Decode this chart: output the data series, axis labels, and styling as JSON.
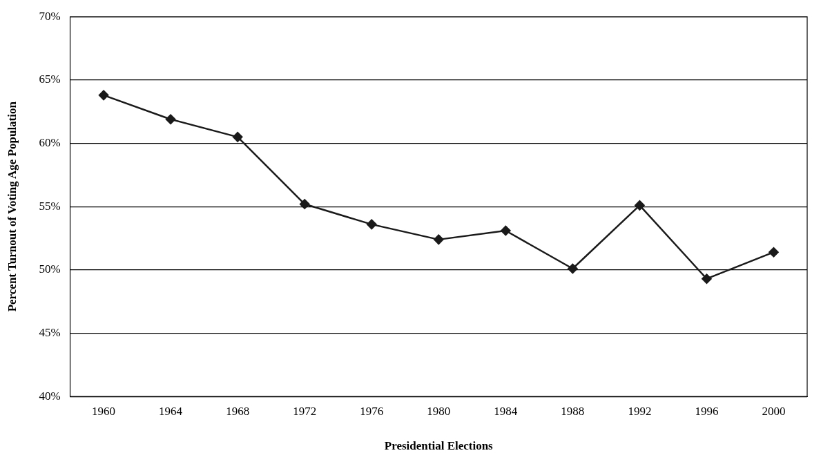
{
  "chart_data": {
    "type": "line",
    "xlabel": "Presidential Elections",
    "ylabel": "Percent Turnout of Voting Age Population",
    "categories": [
      "1960",
      "1964",
      "1968",
      "1972",
      "1976",
      "1980",
      "1984",
      "1988",
      "1992",
      "1996",
      "2000"
    ],
    "series": [
      {
        "color": "#1a1a1a",
        "values": [
          63.8,
          61.9,
          60.5,
          55.2,
          53.6,
          52.4,
          53.1,
          50.1,
          55.1,
          49.3,
          51.4
        ]
      }
    ],
    "ylim": [
      40,
      70
    ],
    "yticks": [
      {
        "value": 40,
        "label": "40%"
      },
      {
        "value": 45,
        "label": "45%"
      },
      {
        "value": 50,
        "label": "50%"
      },
      {
        "value": 55,
        "label": "55%"
      },
      {
        "value": 60,
        "label": "60%"
      },
      {
        "value": 65,
        "label": "65%"
      },
      {
        "value": 70,
        "label": "70%"
      }
    ],
    "grid": "y",
    "legend": false,
    "marker": "diamond",
    "line_style": "solid"
  }
}
